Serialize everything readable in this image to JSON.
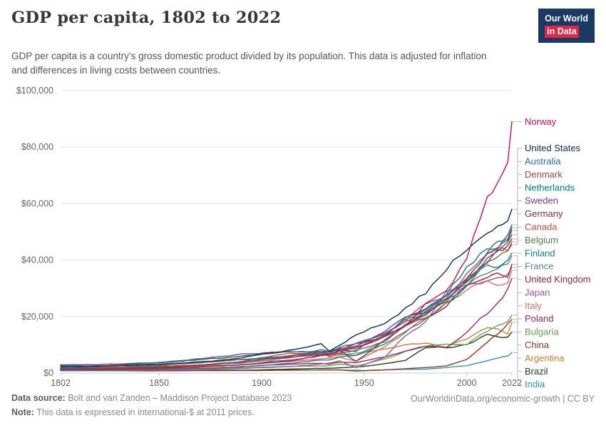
{
  "header": {
    "title": "GDP per capita, 1802 to 2022",
    "subtitle": "GDP per capita is a country’s gross domestic product divided by its population. This data is adjusted for inflation and differences in living costs between countries.",
    "logo": {
      "line1": "Our World",
      "line2": "in Data"
    }
  },
  "footer": {
    "source_label": "Data source:",
    "source_text": "Bolt and van Zanden – Maddison Project Database 2023",
    "note_label": "Note:",
    "note_text": "This data is expressed in international-$ at 2011 prices.",
    "link_text": "OurWorldinData.org/economic-growth | CC BY"
  },
  "colors": {
    "logo_bg": "#1a3a63",
    "logo_accent": "#e02748",
    "grid": "#e2e2e2",
    "zero_line": "#c9c9c9",
    "axis_text": "#666666",
    "connector": "#b3b3b3"
  },
  "chart_data": {
    "type": "line",
    "title": "GDP per capita, 1802 to 2022",
    "xlabel": "",
    "ylabel": "",
    "grid": true,
    "legend_position": "right",
    "x_range": [
      1802,
      2022
    ],
    "y_range": [
      0,
      100000
    ],
    "x_ticks": [
      "1802",
      "1850",
      "1900",
      "1950",
      "2000",
      "2022"
    ],
    "x_tick_values": [
      1802,
      1850,
      1900,
      1950,
      2000,
      2022
    ],
    "y_ticks": [
      "$0",
      "$20,000",
      "$40,000",
      "$60,000",
      "$80,000",
      "$100,000"
    ],
    "y_tick_values": [
      0,
      20000,
      40000,
      60000,
      80000,
      100000
    ],
    "years": [
      1802,
      1820,
      1850,
      1870,
      1890,
      1913,
      1929,
      1933,
      1938,
      1946,
      1950,
      1960,
      1970,
      1980,
      1990,
      2000,
      2010,
      2015,
      2020,
      2022
    ],
    "series": [
      {
        "name": "Norway",
        "color": "#cf0a66",
        "values": [
          1300,
          1400,
          1800,
          2300,
          2900,
          4200,
          6100,
          6300,
          8200,
          8700,
          9900,
          12800,
          17100,
          24100,
          29300,
          40800,
          62400,
          66400,
          76700,
          89000
        ]
      },
      {
        "name": "United States",
        "color": "#0b2a5c",
        "values": [
          2200,
          2500,
          3100,
          3700,
          5300,
          8100,
          10300,
          7800,
          9500,
          13500,
          14600,
          17500,
          23000,
          28600,
          35800,
          44700,
          47600,
          52600,
          55300,
          58000
        ]
      },
      {
        "name": "Australia",
        "color": "#286bbb",
        "values": [
          1800,
          2200,
          3800,
          5200,
          6600,
          7800,
          7200,
          6600,
          8900,
          10500,
          11700,
          14000,
          18500,
          21900,
          26400,
          33500,
          42300,
          46000,
          49000,
          52500
        ]
      },
      {
        "name": "Denmark",
        "color": "#9d4a34",
        "values": [
          1600,
          1700,
          2300,
          3000,
          3900,
          5700,
          7600,
          7800,
          8600,
          9200,
          10200,
          13400,
          18300,
          21900,
          26000,
          32700,
          42000,
          45000,
          48000,
          51500
        ]
      },
      {
        "name": "Netherlands",
        "color": "#00847e",
        "values": [
          2600,
          2400,
          3200,
          4100,
          4800,
          5900,
          8200,
          7500,
          7800,
          7500,
          9800,
          13000,
          18800,
          22800,
          27400,
          37400,
          45100,
          45900,
          48100,
          50500
        ]
      },
      {
        "name": "Sweden",
        "color": "#6d3e91",
        "values": [
          1300,
          1300,
          1700,
          2200,
          2900,
          4600,
          6200,
          6300,
          8000,
          9800,
          11000,
          14500,
          19600,
          22300,
          27100,
          32700,
          41100,
          44300,
          46400,
          49000
        ]
      },
      {
        "name": "Germany",
        "color": "#883039",
        "values": [
          1600,
          1700,
          2100,
          2800,
          3900,
          5800,
          6600,
          6700,
          8100,
          4200,
          6200,
          12100,
          16600,
          20700,
          25700,
          33000,
          39400,
          43200,
          45000,
          47500
        ]
      },
      {
        "name": "Canada",
        "color": "#d1493f",
        "values": [
          1300,
          1500,
          2200,
          2800,
          4000,
          7000,
          7500,
          5800,
          7000,
          10600,
          11700,
          14200,
          19100,
          24900,
          28000,
          35200,
          40300,
          43100,
          42900,
          46500
        ]
      },
      {
        "name": "Belgium",
        "color": "#578145",
        "values": [
          1800,
          1900,
          2700,
          3800,
          4800,
          6200,
          7300,
          7000,
          7200,
          8200,
          8900,
          11100,
          16800,
          21500,
          26400,
          33100,
          39300,
          40900,
          42000,
          45500
        ]
      },
      {
        "name": "Finland",
        "color": "#17876d",
        "values": [
          1000,
          1000,
          1400,
          1700,
          2200,
          3400,
          4700,
          4800,
          5800,
          6300,
          7100,
          10100,
          14400,
          18700,
          24300,
          30100,
          38000,
          38300,
          40400,
          42500
        ]
      },
      {
        "name": "France",
        "color": "#5e7ca8",
        "values": [
          1600,
          1700,
          2300,
          2900,
          3600,
          5200,
          7100,
          6800,
          6800,
          6200,
          7900,
          11500,
          16700,
          21300,
          26100,
          31200,
          35900,
          37300,
          37900,
          41500
        ]
      },
      {
        "name": "United Kingdom",
        "color": "#932834",
        "values": [
          2900,
          3000,
          3700,
          4800,
          5900,
          7300,
          7500,
          7400,
          8700,
          10400,
          10800,
          13000,
          16400,
          19400,
          24500,
          30700,
          34100,
          36100,
          33200,
          38500
        ]
      },
      {
        "name": "Japan",
        "color": "#a2559c",
        "values": [
          1100,
          1100,
          1100,
          1200,
          1600,
          2300,
          3200,
          3500,
          4200,
          1900,
          2800,
          5700,
          13400,
          18000,
          27900,
          30900,
          32900,
          34900,
          35500,
          37500
        ]
      },
      {
        "name": "Italy",
        "color": "#e56e5a",
        "values": [
          2300,
          2200,
          2400,
          2600,
          2900,
          4100,
          5000,
          5200,
          5600,
          4200,
          5800,
          9500,
          14400,
          19200,
          25200,
          30000,
          31900,
          30700,
          30900,
          36500
        ]
      },
      {
        "name": "Poland",
        "color": "#9a2964",
        "values": [
          1200,
          1250,
          1400,
          1700,
          2200,
          3100,
          3500,
          3200,
          3900,
          3800,
          4400,
          5700,
          7800,
          9600,
          9100,
          14600,
          21100,
          24600,
          29200,
          33500
        ]
      },
      {
        "name": "Bulgaria",
        "color": "#68a04e",
        "values": [
          1000,
          1050,
          1200,
          1500,
          1800,
          2400,
          2500,
          2700,
          3100,
          2600,
          3000,
          5100,
          7600,
          9600,
          10100,
          9900,
          14900,
          16600,
          18600,
          20500
        ]
      },
      {
        "name": "China",
        "color": "#8b3a26",
        "values": [
          900,
          900,
          800,
          850,
          900,
          1000,
          1100,
          1150,
          1100,
          750,
          800,
          1100,
          1500,
          2000,
          2500,
          4700,
          10500,
          13600,
          17200,
          19000
        ]
      },
      {
        "name": "Argentina",
        "color": "#c78136",
        "values": [
          1700,
          1800,
          2100,
          2500,
          3800,
          6100,
          6600,
          5900,
          6300,
          7000,
          7300,
          8500,
          10100,
          10600,
          9400,
          12100,
          15700,
          16100,
          14100,
          18000
        ]
      },
      {
        "name": "Brazil",
        "color": "#18470f",
        "values": [
          900,
          950,
          1000,
          1000,
          1000,
          1400,
          1700,
          1700,
          1900,
          2200,
          2400,
          3300,
          4600,
          9000,
          9100,
          10000,
          13500,
          13100,
          12700,
          14500
        ]
      },
      {
        "name": "India",
        "color": "#2a9d9f",
        "values": [
          900,
          900,
          900,
          950,
          1000,
          1100,
          1100,
          1100,
          1100,
          950,
          900,
          1100,
          1300,
          1400,
          1900,
          2600,
          4400,
          5400,
          6200,
          7200
        ]
      }
    ]
  }
}
